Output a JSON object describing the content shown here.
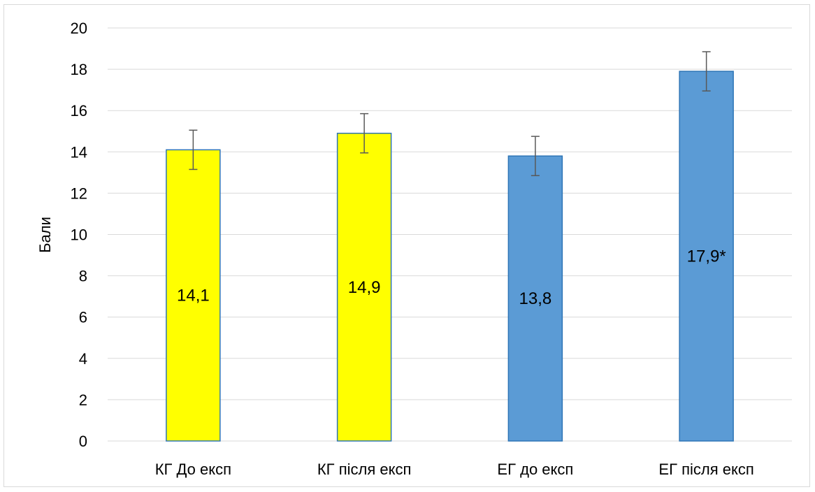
{
  "chart_data": {
    "type": "bar",
    "title": "",
    "xlabel": "",
    "ylabel": "Бали",
    "ylim": [
      0,
      20
    ],
    "yticks": [
      0,
      2,
      4,
      6,
      8,
      10,
      12,
      14,
      16,
      18,
      20
    ],
    "grid": true,
    "legend": "none",
    "categories": [
      "КГ До експ",
      "КГ після експ",
      "ЕГ до експ",
      "ЕГ після експ"
    ],
    "values": [
      14.1,
      14.9,
      13.8,
      17.9
    ],
    "error": [
      0.95,
      0.95,
      0.95,
      0.95
    ],
    "data_labels": [
      "14,1",
      "14,9",
      "13,8",
      "17,9*"
    ],
    "colors": [
      "#FFFF00",
      "#FFFF00",
      "#5B9BD5",
      "#5B9BD5"
    ],
    "edge_color": "#2E75B6",
    "error_color": "#595959",
    "grid_color": "#d9d9d9"
  }
}
